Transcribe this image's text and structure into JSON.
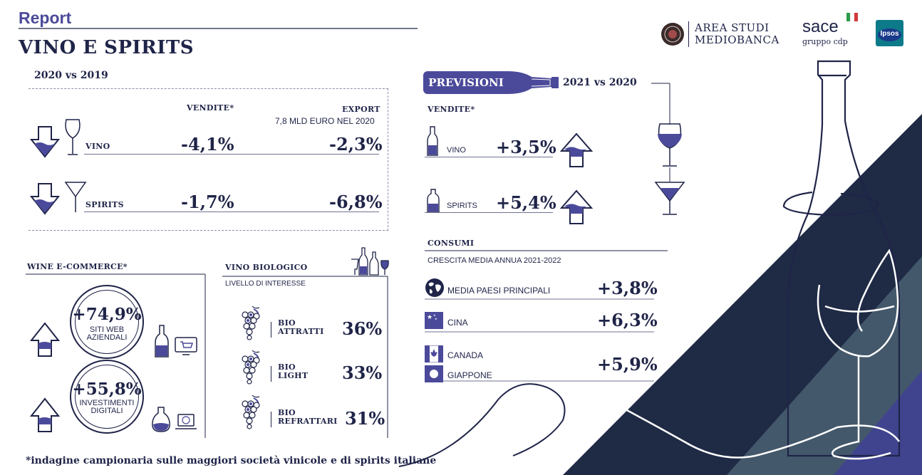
{
  "header": {
    "report": "Report",
    "title": "VINO E SPIRITS",
    "logos": {
      "mediobanca_line1": "AREA STUDI",
      "mediobanca_line2": "MEDIOBANCA",
      "sace_name": "sace",
      "sace_sub": "gruppo cdp",
      "ipsos": "Ipsos"
    }
  },
  "past": {
    "period": "2020 vs 2019",
    "col_vendite": "VENDITE*",
    "col_export": "EXPORT",
    "export_note": "7,8 MLD EURO NEL 2020",
    "rows": [
      {
        "label": "VINO",
        "vendite": "-4,1%",
        "export": "-2,3%"
      },
      {
        "label": "SPIRITS",
        "vendite": "-1,7%",
        "export": "-6,8%"
      }
    ]
  },
  "ecommerce": {
    "title": "WINE E-COMMERCE*",
    "items": [
      {
        "value": "+74,9%",
        "label_line1": "SITI WEB",
        "label_line2": "AZIENDALI"
      },
      {
        "value": "+55,8%",
        "label_line1": "INVESTIMENTI",
        "label_line2": "DIGITALI"
      }
    ]
  },
  "bio": {
    "title": "VINO BIOLOGICO",
    "subtitle": "LIVELLO DI INTERESSE",
    "items": [
      {
        "label_line1": "BIO",
        "label_line2": "ATTRATTI",
        "value": "36%"
      },
      {
        "label_line1": "BIO",
        "label_line2": "LIGHT",
        "value": "33%"
      },
      {
        "label_line1": "BIO",
        "label_line2": "REFRATTARI",
        "value": "31%"
      }
    ]
  },
  "forecast": {
    "badge": "PREVISIONI",
    "period": "2021 vs 2020",
    "col_vendite": "VENDITE*",
    "rows": [
      {
        "label": "VINO",
        "value": "+3,5%"
      },
      {
        "label": "SPIRITS",
        "value": "+5,4%"
      }
    ]
  },
  "consumi": {
    "title": "CONSUMI",
    "subtitle": "CRESCITA MEDIA ANNUA 2021-2022",
    "rows": [
      {
        "label": "MEDIA PAESI PRINCIPALI",
        "value": "+3,8%",
        "icon": "globe-icon"
      },
      {
        "label": "CINA",
        "value": "+6,3%",
        "icon": "china-flag-icon"
      },
      {
        "label": "CANADA",
        "icon": "canada-flag-icon"
      },
      {
        "label": "GIAPPONE",
        "icon": "japan-flag-icon"
      }
    ],
    "canada_japan_value": "+5,9%"
  },
  "footnote": "*indagine campionaria sulle maggiori società vinicole e di spirits italiane",
  "colors": {
    "navy": "#1f2448",
    "purple": "#4b4a9a",
    "slate": "#44586b",
    "dark_band": "#1f2a45"
  }
}
